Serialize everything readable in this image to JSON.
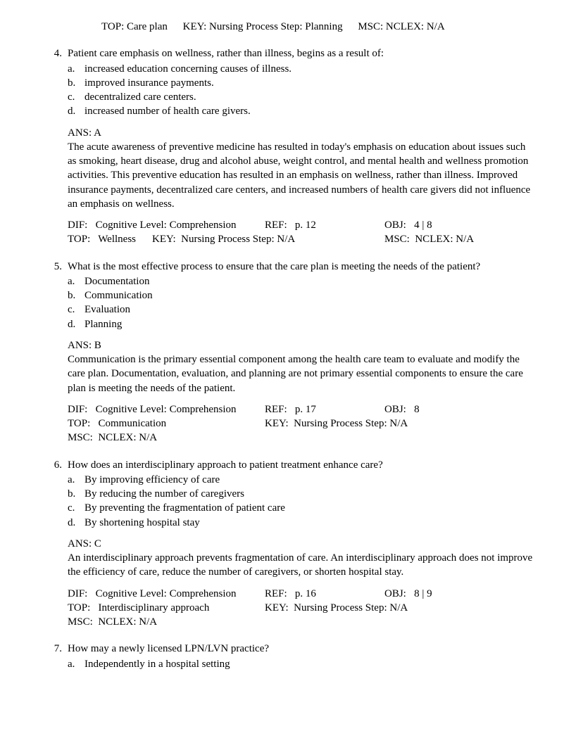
{
  "headerMeta": {
    "top": "TOP:  Care plan",
    "key": "KEY:  Nursing Process Step: Planning",
    "msc": "MSC:  NCLEX: N/A"
  },
  "questions": [
    {
      "num": "4.",
      "stem": "Patient care emphasis on wellness, rather than illness, begins as a result of:",
      "options": [
        {
          "l": "a.",
          "t": "increased education concerning causes of illness."
        },
        {
          "l": "b.",
          "t": "improved insurance payments."
        },
        {
          "l": "c.",
          "t": "decentralized care centers."
        },
        {
          "l": "d.",
          "t": "increased number of health care givers."
        }
      ],
      "ans": "ANS:  A",
      "rationale": "The acute awareness of preventive medicine has resulted in today's emphasis on education about issues such as smoking, heart disease, drug and alcohol abuse, weight control, and mental health and wellness promotion activities. This preventive education has resulted in an emphasis on wellness, rather than illness. Improved insurance payments, decentralized care centers, and increased numbers of health care givers did not influence an emphasis on wellness.",
      "meta": {
        "dif": "DIF:   Cognitive Level: Comprehension",
        "ref": "REF:   p. 12",
        "obj": "OBJ:   4 | 8",
        "top": "TOP:   Wellness",
        "key": "KEY:  Nursing Process Step: N/A",
        "msc": "MSC:  NCLEX: N/A",
        "layout": "A"
      }
    },
    {
      "num": "5.",
      "stem": "What is the most effective process to ensure that the care plan is meeting the needs of the patient?",
      "options": [
        {
          "l": "a.",
          "t": "Documentation"
        },
        {
          "l": "b.",
          "t": "Communication"
        },
        {
          "l": "c.",
          "t": "Evaluation"
        },
        {
          "l": "d.",
          "t": "Planning"
        }
      ],
      "ans": "ANS:  B",
      "rationale": "Communication is the primary essential component among the health care team to evaluate and modify the care plan. Documentation, evaluation, and planning are not primary essential components to ensure the care plan is meeting the needs of the patient.",
      "meta": {
        "dif": "DIF:   Cognitive Level: Comprehension",
        "ref": "REF:   p. 17",
        "obj": "OBJ:   8",
        "top": "TOP:   Communication",
        "key": "KEY:  Nursing Process Step: N/A",
        "msc": "MSC:  NCLEX: N/A",
        "layout": "B"
      }
    },
    {
      "num": "6.",
      "stem": "How does an interdisciplinary approach to patient treatment enhance care?",
      "options": [
        {
          "l": "a.",
          "t": "By improving efficiency of care"
        },
        {
          "l": "b.",
          "t": "By reducing the number of caregivers"
        },
        {
          "l": "c.",
          "t": "By preventing the fragmentation of patient care"
        },
        {
          "l": "d.",
          "t": "By shortening hospital stay"
        }
      ],
      "ans": "ANS:  C",
      "rationale": "An interdisciplinary approach prevents fragmentation of care. An interdisciplinary approach does not improve the efficiency of care, reduce the number of caregivers, or shorten hospital stay.",
      "meta": {
        "dif": "DIF:   Cognitive Level: Comprehension",
        "ref": "REF:   p. 16",
        "obj": "OBJ:   8 | 9",
        "top": "TOP:   Interdisciplinary approach",
        "key": "KEY:  Nursing Process Step: N/A",
        "msc": "MSC:  NCLEX: N/A",
        "layout": "B"
      }
    },
    {
      "num": "7.",
      "stem": "How may a newly licensed LPN/LVN practice?",
      "options": [
        {
          "l": "a.",
          "t": "Independently in a hospital setting"
        }
      ],
      "ans": null,
      "rationale": null,
      "meta": null
    }
  ]
}
